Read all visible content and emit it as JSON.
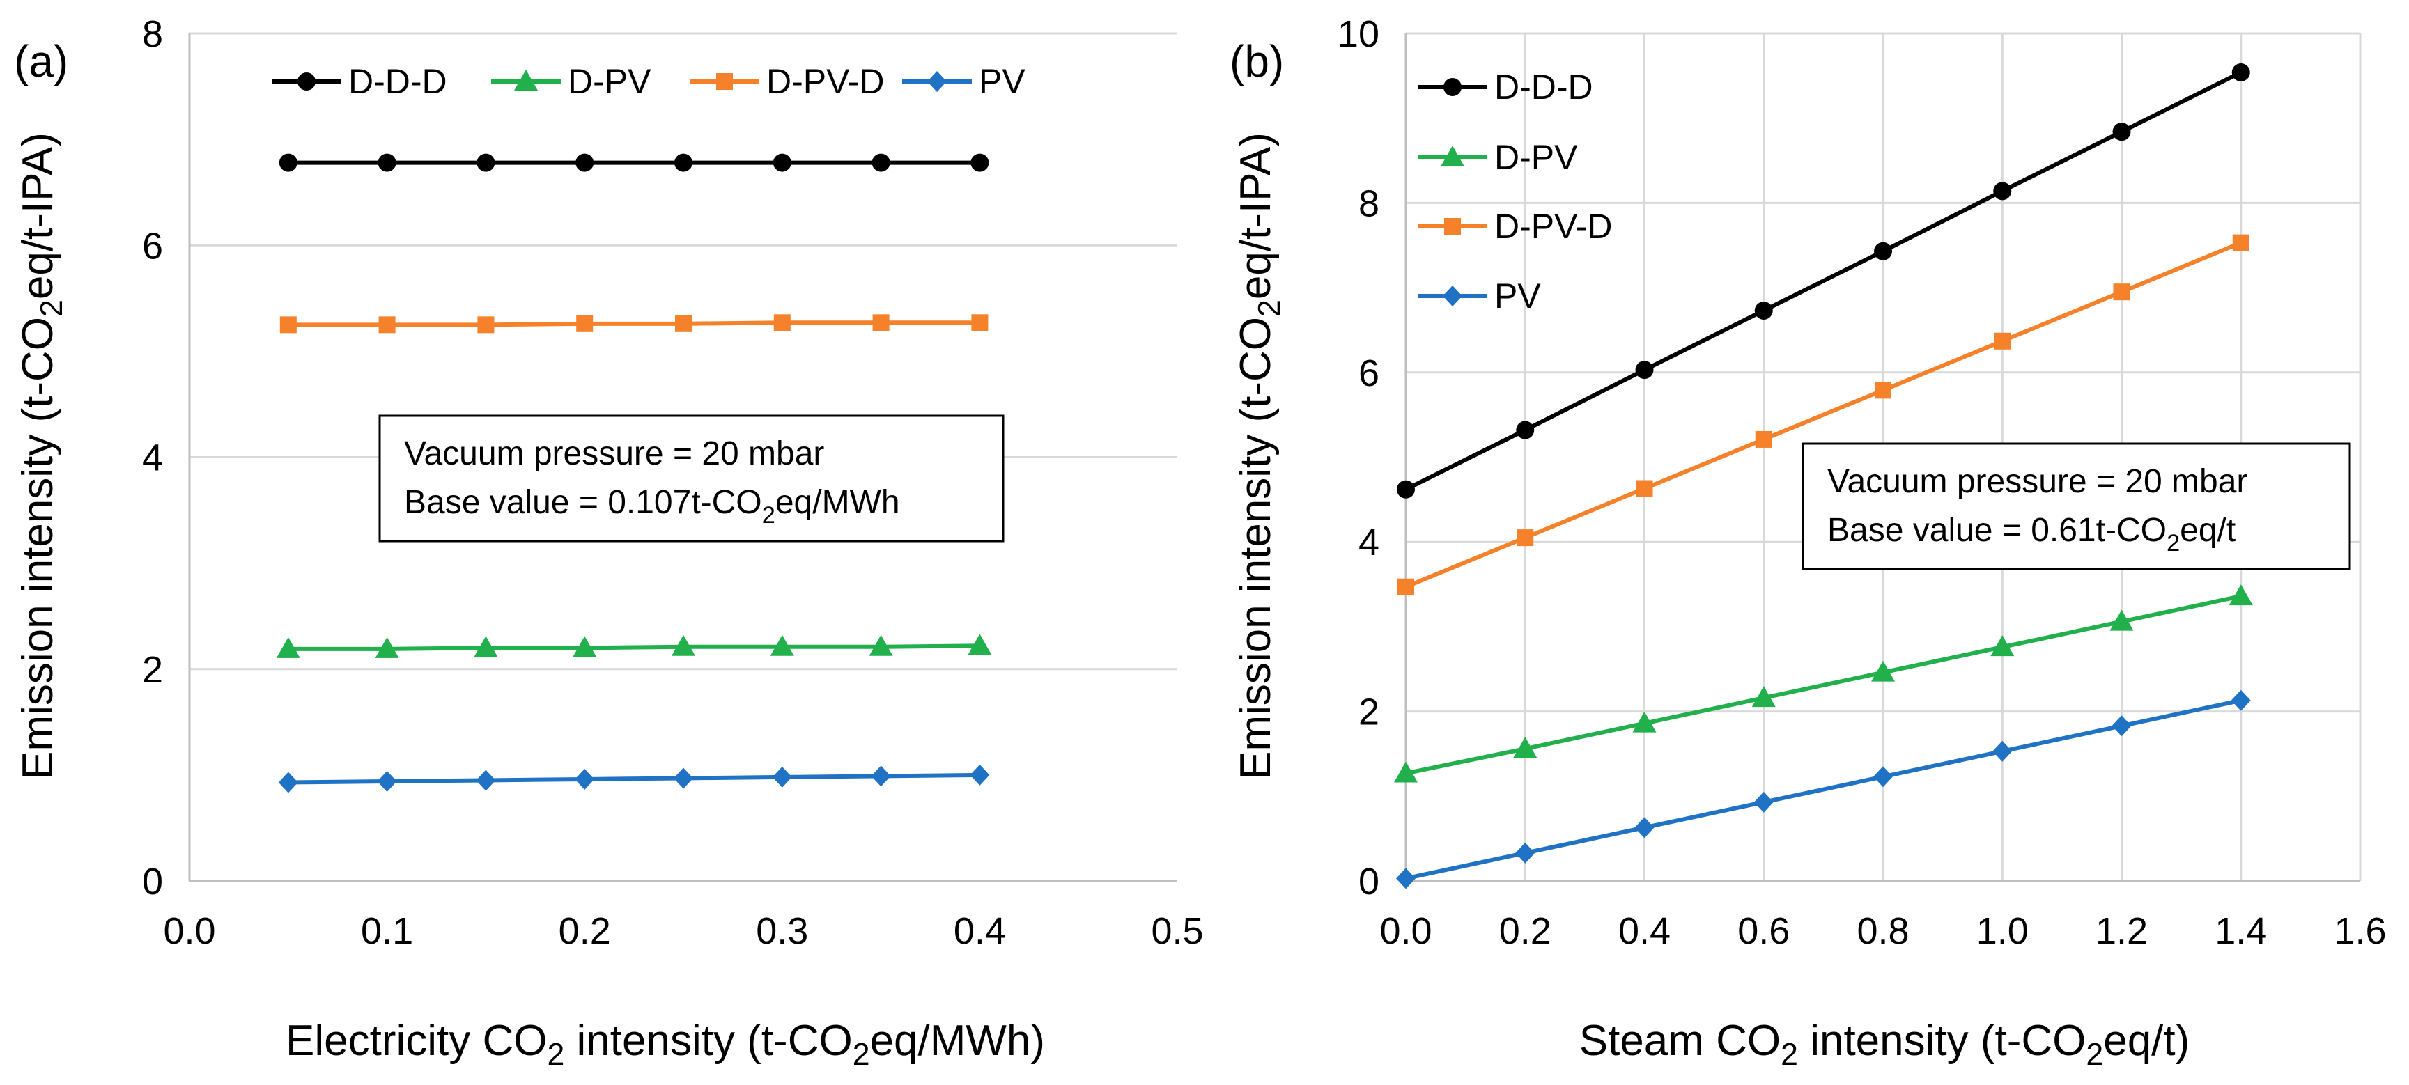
{
  "chart_data": [
    {
      "type": "line",
      "panel_label": "(a)",
      "xlabel_parts": [
        "Electricity CO",
        "2",
        " intensity (t-CO",
        "2",
        "eq/MWh)"
      ],
      "ylabel_parts": [
        "Emission intensity (t-CO",
        "2",
        "eq/t-IPA)"
      ],
      "xlim": [
        0.0,
        0.5
      ],
      "ylim": [
        0,
        8
      ],
      "x_ticks": [
        "0.0",
        "0.1",
        "0.2",
        "0.3",
        "0.4",
        "0.5"
      ],
      "y_ticks": [
        "0",
        "2",
        "4",
        "6",
        "8"
      ],
      "grid": "horizontal",
      "legend_position": "top",
      "x": [
        0.05,
        0.1,
        0.15,
        0.2,
        0.25,
        0.3,
        0.35,
        0.4
      ],
      "series": [
        {
          "name": "D-D-D",
          "color": "#000000",
          "marker": "circle",
          "values": [
            6.78,
            6.78,
            6.78,
            6.78,
            6.78,
            6.78,
            6.78,
            6.78
          ]
        },
        {
          "name": "D-PV",
          "color": "#21B04B",
          "marker": "triangle",
          "values": [
            2.19,
            2.19,
            2.2,
            2.2,
            2.21,
            2.21,
            2.21,
            2.22
          ]
        },
        {
          "name": "D-PV-D",
          "color": "#F5822A",
          "marker": "square",
          "values": [
            5.25,
            5.25,
            5.25,
            5.26,
            5.26,
            5.27,
            5.27,
            5.27
          ]
        },
        {
          "name": "PV",
          "color": "#1F72C4",
          "marker": "diamond",
          "values": [
            0.93,
            0.94,
            0.95,
            0.96,
            0.97,
            0.98,
            0.99,
            1.0
          ]
        }
      ],
      "annotation": {
        "line1": "Vacuum pressure = 20 mbar",
        "line2_parts": [
          "Base value = 0.107t-CO",
          "2",
          "eq/MWh"
        ]
      }
    },
    {
      "type": "line",
      "panel_label": "(b)",
      "xlabel_parts": [
        "Steam CO",
        "2",
        " intensity (t-CO",
        "2",
        "eq/t)"
      ],
      "ylabel_parts": [
        "Emission intensity (t-CO",
        "2",
        "eq/t-IPA)"
      ],
      "xlim": [
        0.0,
        1.6
      ],
      "ylim": [
        0,
        10
      ],
      "x_ticks": [
        "0.0",
        "0.2",
        "0.4",
        "0.6",
        "0.8",
        "1.0",
        "1.2",
        "1.4",
        "1.6"
      ],
      "y_ticks": [
        "0",
        "2",
        "4",
        "6",
        "8",
        "10"
      ],
      "grid": "both",
      "legend_position": "top-left",
      "x": [
        0.0,
        0.2,
        0.4,
        0.6,
        0.8,
        1.0,
        1.2,
        1.4
      ],
      "series": [
        {
          "name": "D-D-D",
          "color": "#000000",
          "marker": "circle",
          "values": [
            4.62,
            5.32,
            6.03,
            6.73,
            7.43,
            8.14,
            8.84,
            9.54
          ]
        },
        {
          "name": "D-PV",
          "color": "#21B04B",
          "marker": "triangle",
          "values": [
            1.27,
            1.56,
            1.86,
            2.16,
            2.46,
            2.76,
            3.06,
            3.36
          ]
        },
        {
          "name": "D-PV-D",
          "color": "#F5822A",
          "marker": "square",
          "values": [
            3.47,
            4.05,
            4.63,
            5.21,
            5.79,
            6.37,
            6.95,
            7.53
          ]
        },
        {
          "name": "PV",
          "color": "#1F72C4",
          "marker": "diamond",
          "values": [
            0.03,
            0.33,
            0.63,
            0.93,
            1.23,
            1.53,
            1.83,
            2.13
          ]
        }
      ],
      "annotation": {
        "line1": "Vacuum pressure = 20 mbar",
        "line2_parts": [
          "Base value = 0.61t-CO",
          "2",
          "eq/t"
        ]
      }
    }
  ]
}
